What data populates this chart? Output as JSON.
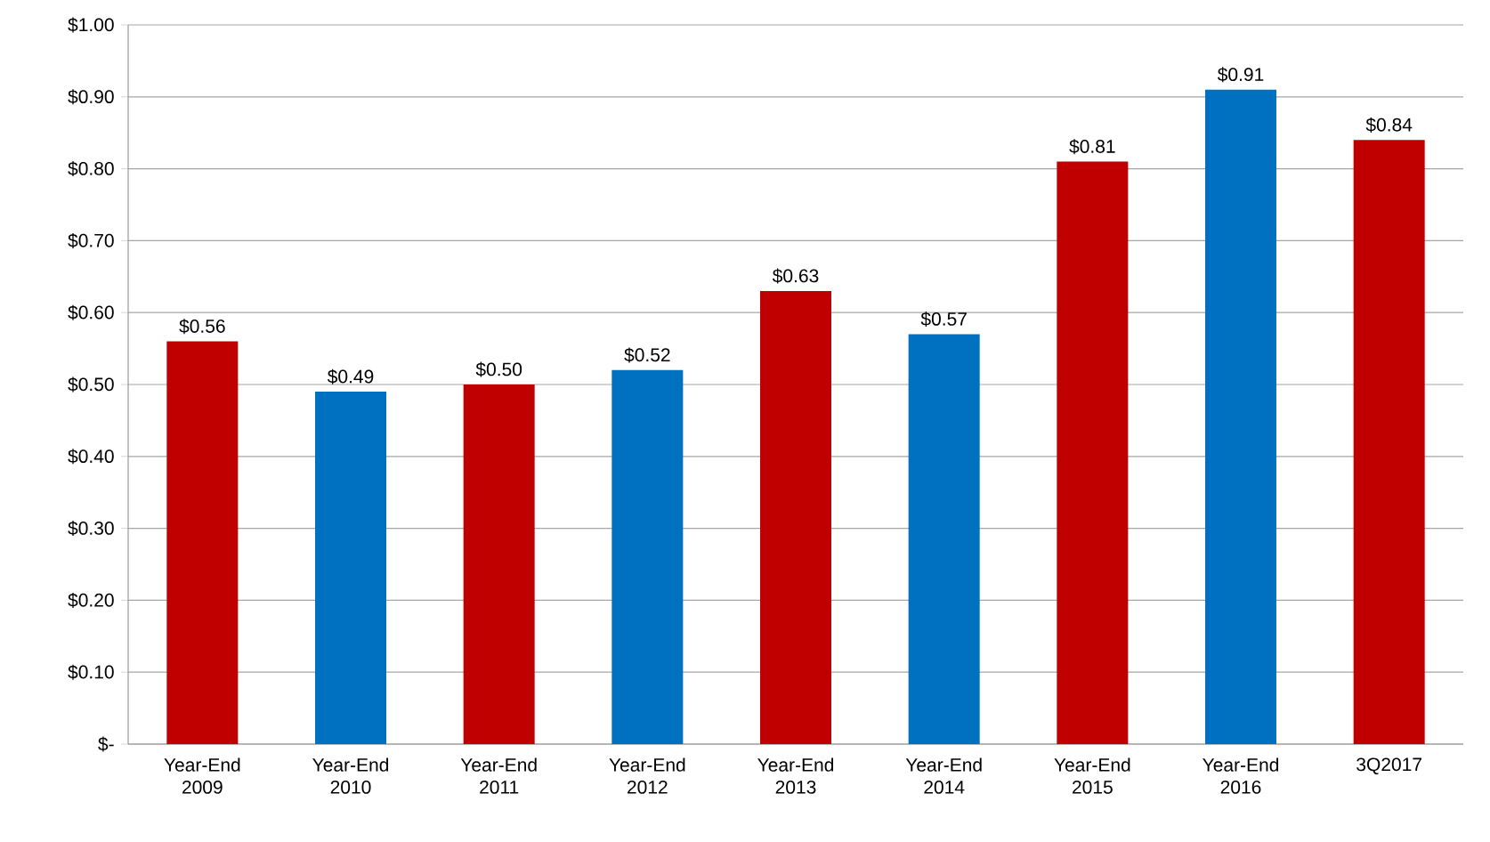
{
  "chart_data": {
    "type": "bar",
    "categories": [
      "Year-End 2009",
      "Year-End 2010",
      "Year-End 2011",
      "Year-End 2012",
      "Year-End 2013",
      "Year-End 2014",
      "Year-End 2015",
      "Year-End 2016",
      "3Q2017"
    ],
    "values": [
      0.56,
      0.49,
      0.5,
      0.52,
      0.63,
      0.57,
      0.81,
      0.91,
      0.84
    ],
    "colors": [
      "#c00000",
      "#0070c0",
      "#c00000",
      "#0070c0",
      "#c00000",
      "#0070c0",
      "#c00000",
      "#0070c0",
      "#c00000"
    ],
    "value_labels": [
      "$0.56",
      "$0.49",
      "$0.50",
      "$0.52",
      "$0.63",
      "$0.57",
      "$0.81",
      "$0.91",
      "$0.84"
    ],
    "ylim": [
      0,
      1.0
    ],
    "yticks": [
      {
        "value": 0,
        "label": "$-"
      },
      {
        "value": 0.1,
        "label": "$0.10"
      },
      {
        "value": 0.2,
        "label": "$0.20"
      },
      {
        "value": 0.3,
        "label": "$0.30"
      },
      {
        "value": 0.4,
        "label": "$0.40"
      },
      {
        "value": 0.5,
        "label": "$0.50"
      },
      {
        "value": 0.6,
        "label": "$0.60"
      },
      {
        "value": 0.7,
        "label": "$0.70"
      },
      {
        "value": 0.8,
        "label": "$0.80"
      },
      {
        "value": 0.9,
        "label": "$0.90"
      },
      {
        "value": 1.0,
        "label": "$1.00"
      }
    ],
    "grid": "y"
  }
}
